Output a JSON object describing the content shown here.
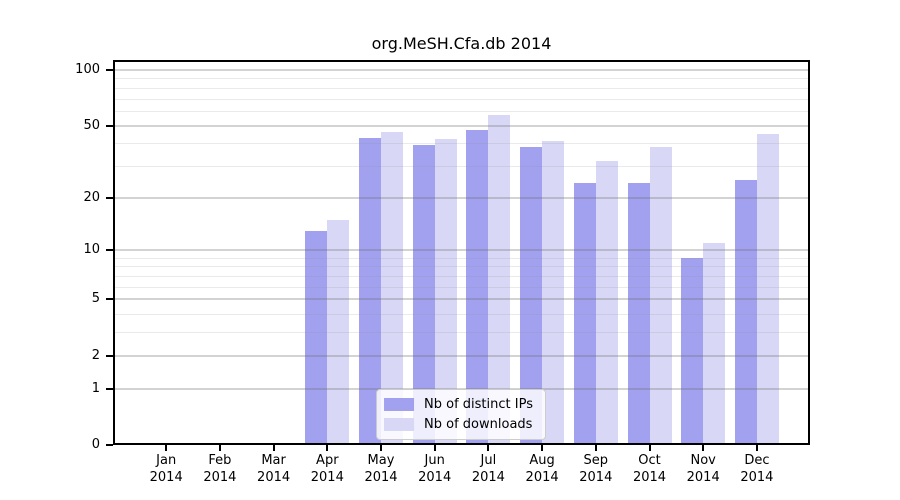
{
  "chart_data": {
    "type": "bar",
    "title": "org.MeSH.Cfa.db 2014",
    "categories": [
      "Jan",
      "Feb",
      "Mar",
      "Apr",
      "May",
      "Jun",
      "Jul",
      "Aug",
      "Sep",
      "Oct",
      "Nov",
      "Dec"
    ],
    "x_tick_year": "2014",
    "series": [
      {
        "name": "Nb of distinct IPs",
        "color": "#a1a1f0",
        "values": [
          0,
          0,
          0,
          13,
          43,
          39,
          47,
          38,
          24,
          24,
          9,
          25
        ]
      },
      {
        "name": "Nb of downloads",
        "color": "#d8d8f6",
        "values": [
          0,
          0,
          0,
          15,
          46,
          42,
          57,
          41,
          32,
          38,
          11,
          45
        ]
      }
    ],
    "yscale": "log1p",
    "y_ticks": [
      0,
      1,
      2,
      5,
      10,
      20,
      50,
      100
    ],
    "y_minor_gridlines": [
      3,
      4,
      6,
      7,
      8,
      9,
      30,
      40,
      60,
      70,
      80,
      90
    ],
    "ylim": [
      0,
      113
    ],
    "grid": true,
    "legend_position": "bottom-center"
  }
}
